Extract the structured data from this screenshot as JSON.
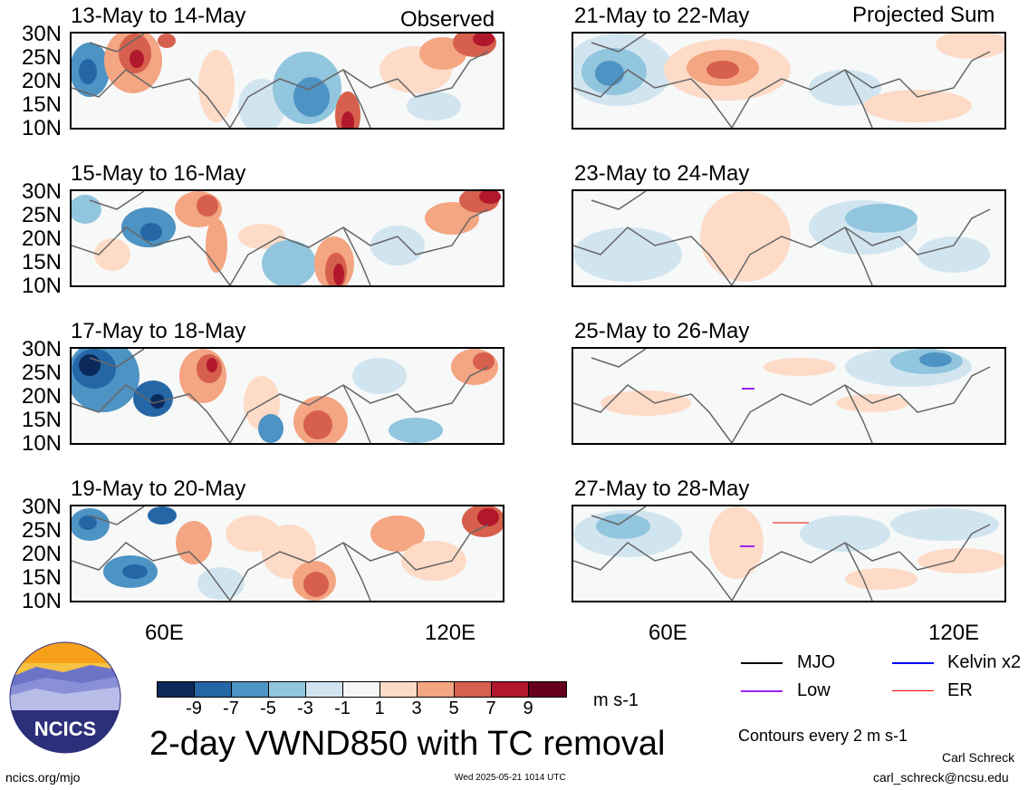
{
  "columns": {
    "left_label": "Observed",
    "right_label": "Projected Sum"
  },
  "panels": {
    "observed": [
      "13-May to 14-May",
      "15-May to 16-May",
      "17-May to 18-May",
      "19-May to 20-May"
    ],
    "projected": [
      "21-May to 22-May",
      "23-May to 24-May",
      "25-May to 26-May",
      "27-May to 28-May"
    ]
  },
  "axes": {
    "lat_labels": [
      "30N",
      "25N",
      "20N",
      "15N",
      "10N"
    ],
    "lon_labels": [
      "60E",
      "120E"
    ]
  },
  "colorbar": {
    "colors": [
      "#0b2a5b",
      "#2566a6",
      "#4d93c4",
      "#92c5de",
      "#d1e5f0",
      "#f7f7f7",
      "#fddbc7",
      "#f4a582",
      "#d6604d",
      "#b2182b",
      "#67001f"
    ],
    "ticks": [
      "-9",
      "-7",
      "-5",
      "-3",
      "-1",
      "1",
      "3",
      "5",
      "7",
      "9"
    ],
    "units": "m s-1"
  },
  "legend": {
    "items": [
      {
        "label": "MJO",
        "color": "#000000"
      },
      {
        "label": "Kelvin x2",
        "color": "#0000ff"
      },
      {
        "label": "Low",
        "color": "#a020f0"
      },
      {
        "label": "ER",
        "color": "#ff0000"
      }
    ],
    "contours_note": "Contours every 2 m s-1"
  },
  "title": "2-day VWND850 with TC removal",
  "logo_text": "NCICS",
  "footer": {
    "url": "ncics.org/mjo",
    "timestamp": "Wed 2025-05-21 1014 UTC",
    "author": "Carl Schreck",
    "email": "carl_schreck@ncsu.edu"
  }
}
